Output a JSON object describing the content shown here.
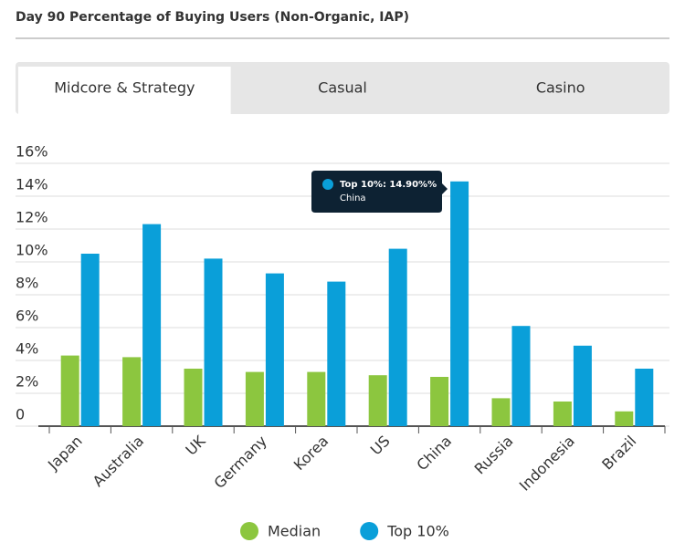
{
  "title": "Day 90 Percentage of Buying Users (Non-Organic, IAP)",
  "tabs": [
    "Midcore & Strategy",
    "Casual",
    "Casino"
  ],
  "active_tab": 0,
  "chart_data": {
    "type": "bar",
    "categories": [
      "Japan",
      "Australia",
      "UK",
      "Germany",
      "Korea",
      "US",
      "China",
      "Russia",
      "Indonesia",
      "Brazil"
    ],
    "series": [
      {
        "name": "Median",
        "color": "#8cc63f",
        "values": [
          4.3,
          4.2,
          3.5,
          3.3,
          3.3,
          3.1,
          3.0,
          1.7,
          1.5,
          0.9
        ]
      },
      {
        "name": "Top 10%",
        "color": "#0a9fd9",
        "values": [
          10.5,
          12.3,
          10.2,
          9.3,
          8.8,
          10.8,
          14.9,
          6.1,
          4.9,
          3.5
        ]
      }
    ],
    "ylim": [
      0,
      16
    ],
    "yticks": [
      0,
      {
        "value": 2,
        "label": "2%"
      },
      {
        "value": 4,
        "label": "4%"
      },
      {
        "value": 6,
        "label": "6%"
      },
      {
        "value": 8,
        "label": "8%"
      },
      {
        "value": 10,
        "label": "10%"
      },
      {
        "value": 12,
        "label": "12%"
      },
      {
        "value": 14,
        "label": "14%"
      },
      {
        "value": 16,
        "label": "16%"
      }
    ],
    "grid": true,
    "legend": "bottom",
    "tooltip": {
      "title": "Top 10%: 14.90%%",
      "subtitle": "China"
    }
  }
}
